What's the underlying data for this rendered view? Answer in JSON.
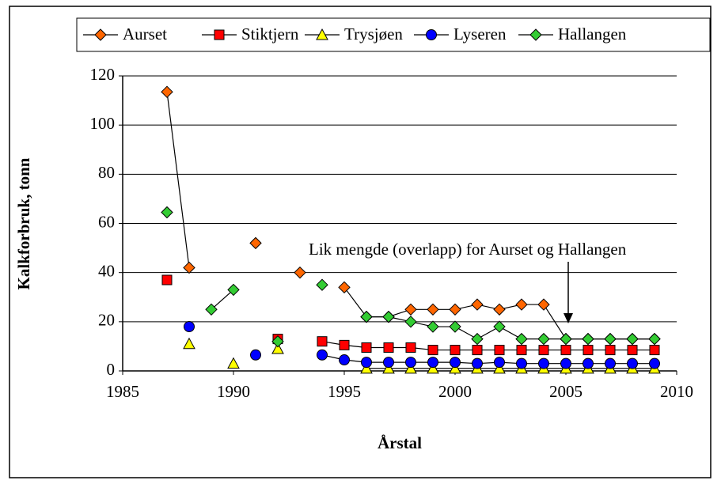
{
  "chart_data": {
    "type": "line",
    "x": [
      1987,
      1988,
      1989,
      1990,
      1991,
      1992,
      1993,
      1994,
      1995,
      1996,
      1997,
      1998,
      1999,
      2000,
      2001,
      2002,
      2003,
      2004,
      2005,
      2006,
      2007,
      2008,
      2009
    ],
    "series": [
      {
        "name": "Aurset",
        "color": "#ff6600",
        "marker": "diamond",
        "values": [
          113.5,
          42,
          null,
          null,
          52,
          null,
          40,
          null,
          34,
          22,
          22,
          25,
          25,
          25,
          27,
          25,
          27,
          27,
          13,
          13,
          13,
          13,
          13
        ]
      },
      {
        "name": "Stiktjern",
        "color": "#ff0000",
        "marker": "square",
        "values": [
          37,
          null,
          null,
          null,
          null,
          13,
          null,
          12,
          10.5,
          9.5,
          9.5,
          9.5,
          8.5,
          8.5,
          8.5,
          8.5,
          8.5,
          8.5,
          8.5,
          8.5,
          8.5,
          8.5,
          8.5
        ]
      },
      {
        "name": "Trysjøen",
        "color": "#ffff00",
        "marker": "triangle",
        "values": [
          null,
          11,
          null,
          3,
          null,
          9,
          null,
          null,
          null,
          1,
          1,
          1,
          1,
          1,
          1,
          1,
          1,
          1,
          1,
          1,
          1,
          1,
          1
        ]
      },
      {
        "name": "Lyseren",
        "color": "#0000ff",
        "marker": "circle",
        "values": [
          null,
          18,
          null,
          null,
          6.5,
          null,
          null,
          6.5,
          4.5,
          3.5,
          3.5,
          3.5,
          3.5,
          3.5,
          3,
          3.5,
          3,
          3,
          3,
          3,
          3,
          3,
          3
        ]
      },
      {
        "name": "Hallangen",
        "color": "#33cc33",
        "marker": "diamond",
        "values": [
          64.5,
          null,
          25,
          33,
          null,
          12,
          null,
          35,
          null,
          22,
          22,
          20,
          18,
          18,
          13,
          18,
          13,
          13,
          13,
          13,
          13,
          13,
          13
        ]
      }
    ],
    "xlabel": "Årstal",
    "ylabel": "Kalkforbruk, tonn",
    "xlim": [
      1985,
      2010
    ],
    "xticks": [
      1985,
      1990,
      1995,
      2000,
      2005,
      2010
    ],
    "ylim": [
      0,
      120
    ],
    "yticks": [
      0,
      20,
      40,
      60,
      80,
      100,
      120
    ],
    "grid": true,
    "legend": "top",
    "annotation": "Lik mengde (overlapp) for Aurset og Hallangen"
  }
}
